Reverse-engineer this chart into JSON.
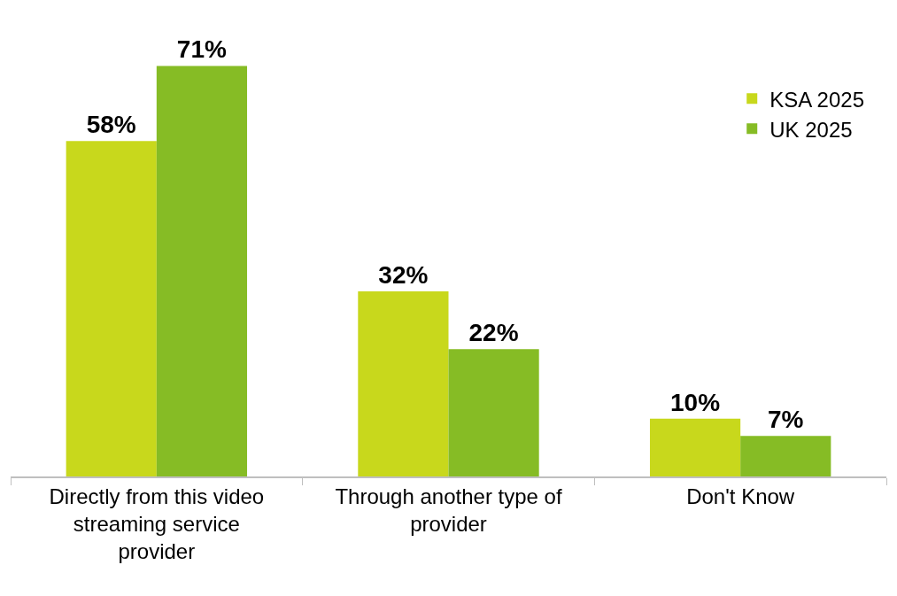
{
  "chart_data": {
    "type": "bar",
    "categories": [
      "Directly from this video streaming service provider",
      "Through another type of provider",
      "Don't Know"
    ],
    "series": [
      {
        "name": "KSA 2025",
        "color": "#c8d81c",
        "values": [
          58,
          32,
          10
        ],
        "value_labels": [
          "58%",
          "32%",
          "10%"
        ]
      },
      {
        "name": "UK 2025",
        "color": "#86bc25",
        "values": [
          71,
          22,
          7
        ],
        "value_labels": [
          "71%",
          "22%",
          "7%"
        ]
      }
    ],
    "legend": "top right"
  }
}
